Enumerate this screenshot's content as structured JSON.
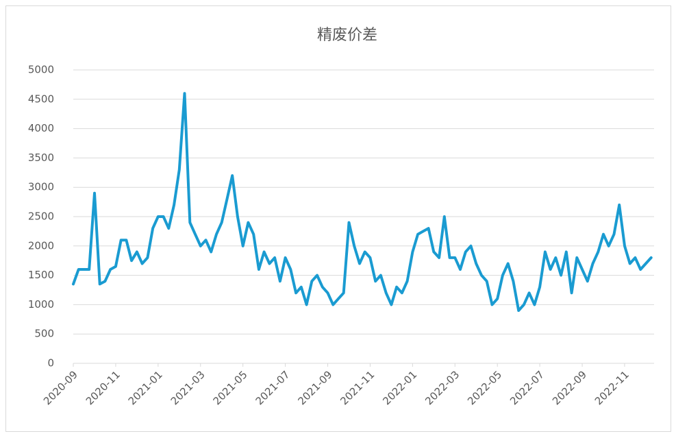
{
  "chart_data": {
    "type": "line",
    "title": "精废价差",
    "categories": [
      "2020-09",
      null,
      null,
      null,
      null,
      null,
      null,
      null,
      "2020-11",
      null,
      null,
      null,
      null,
      null,
      null,
      null,
      "2021-01",
      null,
      null,
      null,
      null,
      null,
      null,
      null,
      "2021-03",
      null,
      null,
      null,
      null,
      null,
      null,
      null,
      "2021-05",
      null,
      null,
      null,
      null,
      null,
      null,
      null,
      "2021-07",
      null,
      null,
      null,
      null,
      null,
      null,
      null,
      "2021-09",
      null,
      null,
      null,
      null,
      null,
      null,
      null,
      "2021-11",
      null,
      null,
      null,
      null,
      null,
      null,
      null,
      "2022-01",
      null,
      null,
      null,
      null,
      null,
      null,
      null,
      "2022-03",
      null,
      null,
      null,
      null,
      null,
      null,
      null,
      "2022-05",
      null,
      null,
      null,
      null,
      null,
      null,
      null,
      "2022-07",
      null,
      null,
      null,
      null,
      null,
      null,
      null,
      "2022-09",
      null,
      null,
      null,
      null,
      null,
      null,
      null,
      "2022-11",
      null,
      null,
      null,
      null,
      null
    ],
    "values": [
      1350,
      1600,
      1600,
      1600,
      2900,
      1350,
      1400,
      1600,
      1650,
      2100,
      2100,
      1750,
      1900,
      1700,
      1800,
      2300,
      2500,
      2500,
      2300,
      2700,
      3300,
      4600,
      2400,
      2200,
      2000,
      2100,
      1900,
      2200,
      2400,
      2800,
      3200,
      2500,
      2000,
      2400,
      2200,
      1600,
      1900,
      1700,
      1800,
      1400,
      1800,
      1600,
      1200,
      1300,
      1000,
      1400,
      1500,
      1300,
      1200,
      1000,
      1100,
      1200,
      2400,
      2000,
      1700,
      1900,
      1800,
      1400,
      1500,
      1200,
      1000,
      1300,
      1200,
      1400,
      1900,
      2200,
      2250,
      2300,
      1900,
      1800,
      2500,
      1800,
      1800,
      1600,
      1900,
      2000,
      1700,
      1500,
      1400,
      1000,
      1100,
      1500,
      1700,
      1400,
      900,
      1000,
      1200,
      1000,
      1300,
      1900,
      1600,
      1800,
      1500,
      1900,
      1200,
      1800,
      1600,
      1400,
      1700,
      1900,
      2200,
      2000,
      2200,
      2700,
      2000,
      1700,
      1800,
      1600,
      1700,
      1800
    ],
    "color": "#1a9bd1",
    "ylim": [
      0,
      5000
    ],
    "yticks": [
      0,
      500,
      1000,
      1500,
      2000,
      2500,
      3000,
      3500,
      4000,
      4500,
      5000
    ],
    "grid": true
  }
}
